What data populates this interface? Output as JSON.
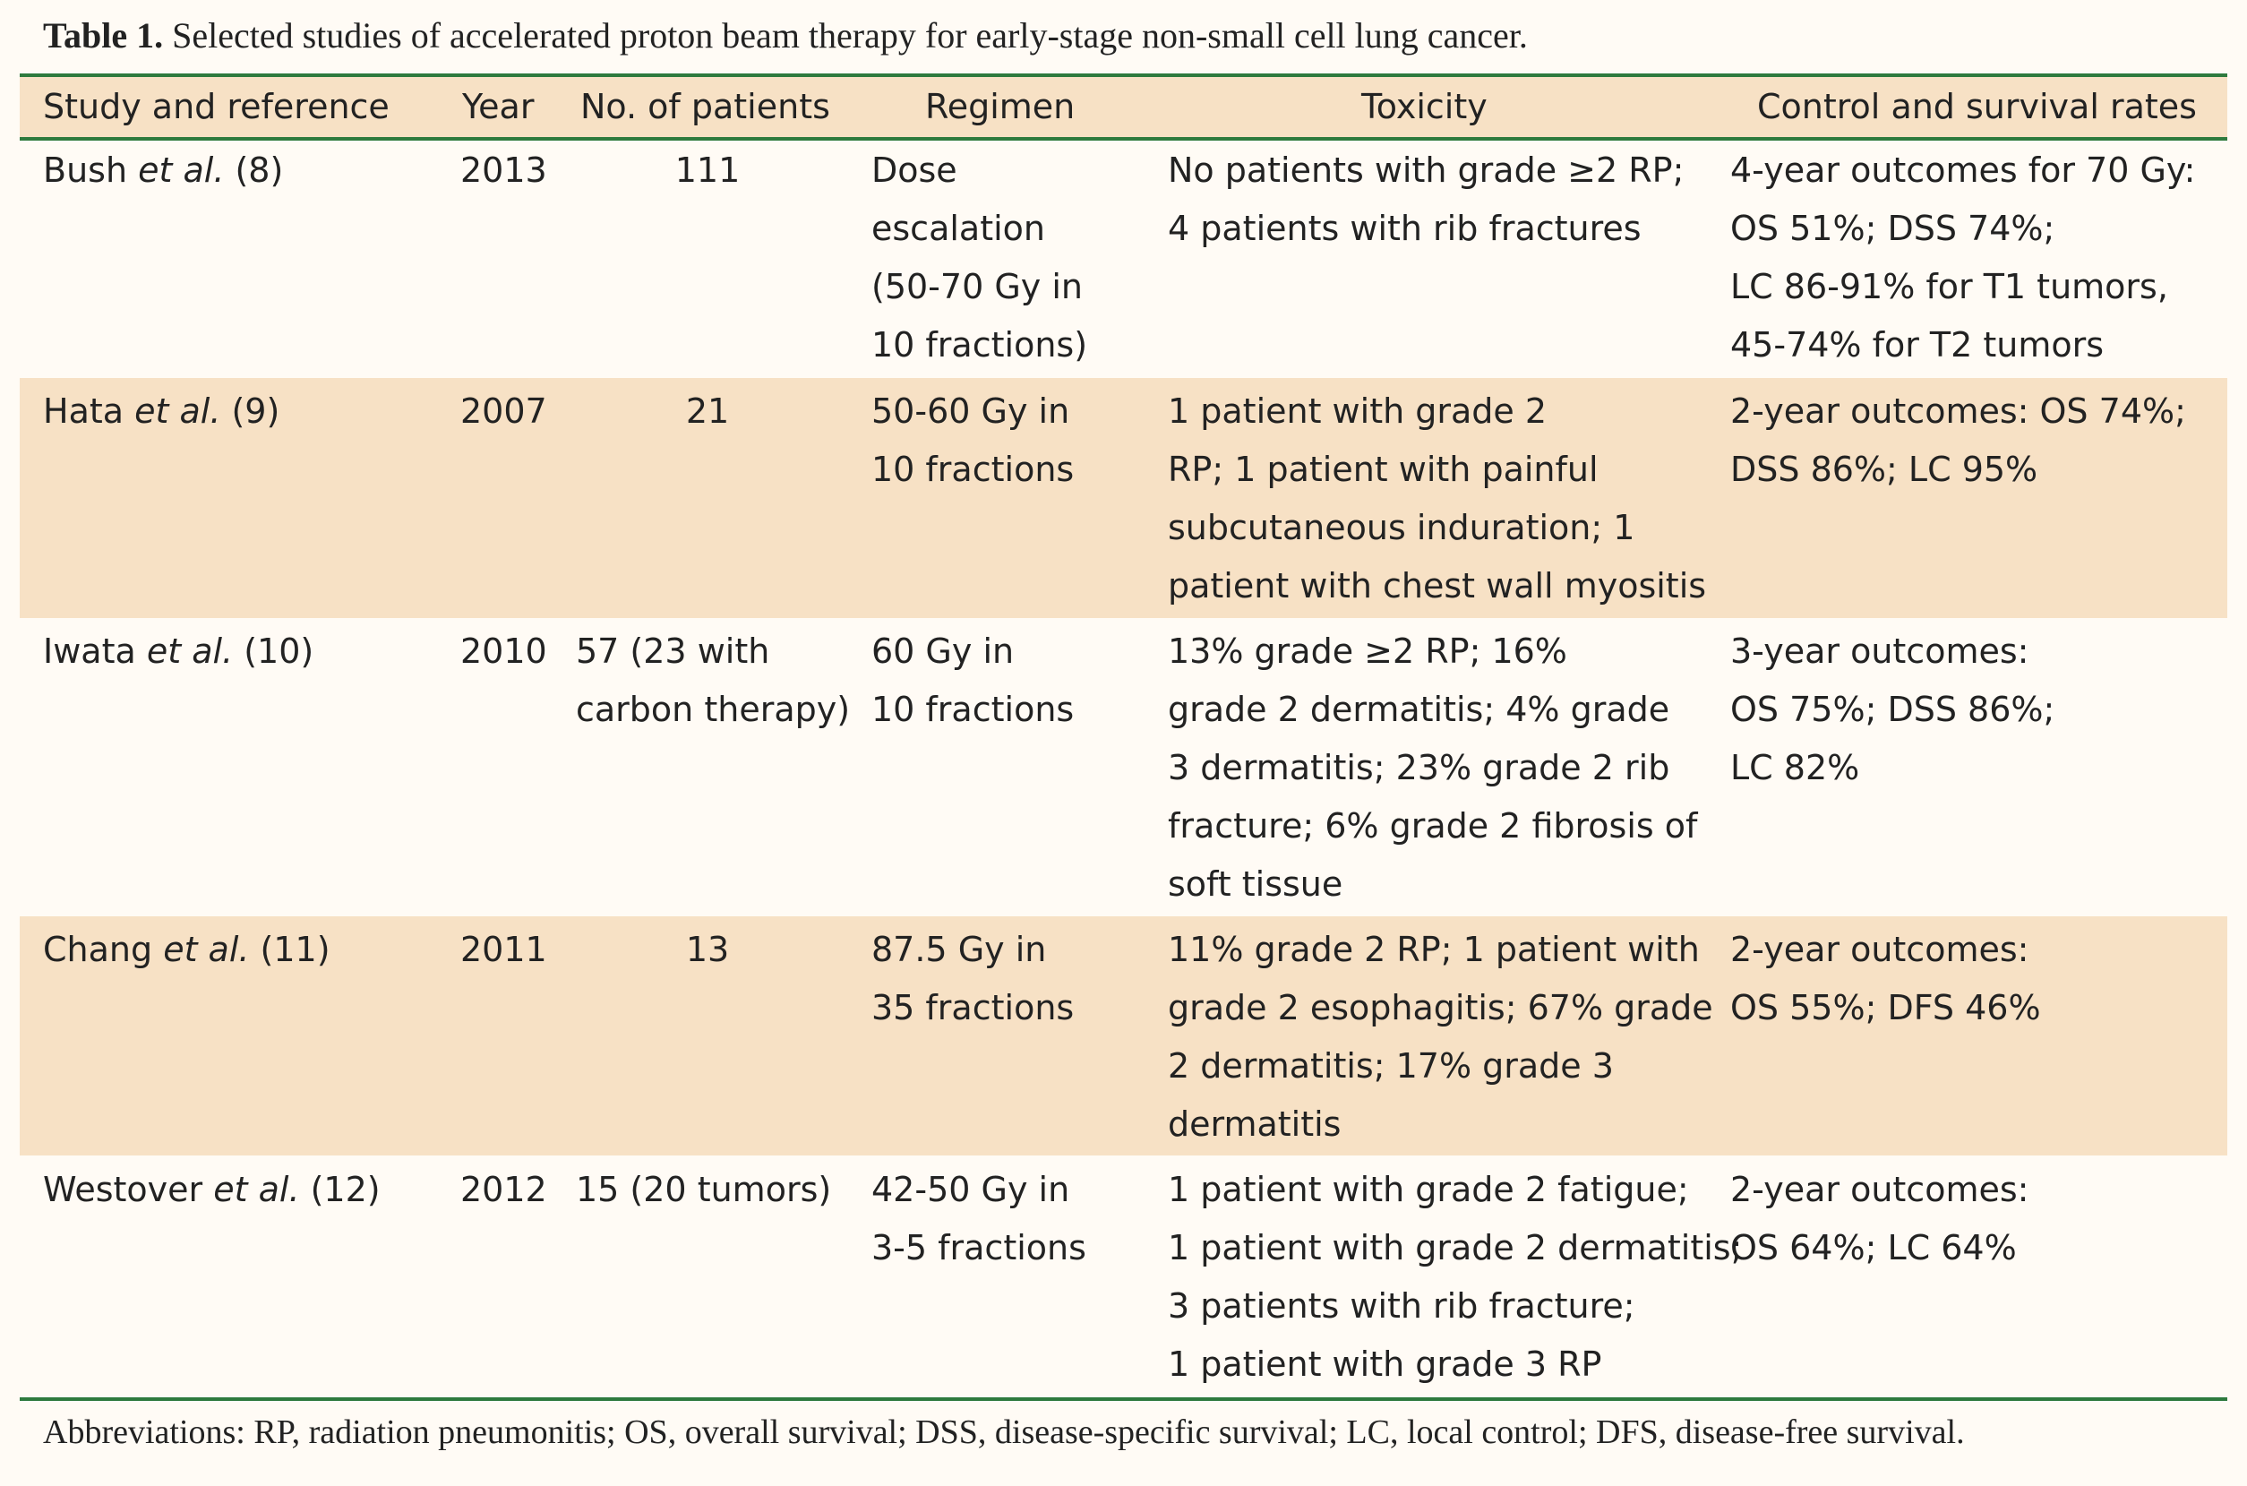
{
  "table": {
    "caption_label": "Table 1.",
    "caption_text": " Selected studies of accelerated proton beam therapy for early-stage non-small cell lung cancer.",
    "headers": [
      "Study and reference",
      "Year",
      "No. of patients",
      "Regimen",
      "Toxicity",
      "Control and survival rates"
    ],
    "rows": [
      {
        "author": "Bush ",
        "etal": "et al.",
        "ref": " (8)",
        "year": "2013",
        "patients": "111",
        "regimen": "Dose\nescalation\n(50-70 Gy in\n10 fractions)",
        "toxicity": "No patients with grade ≥2 RP;\n4 patients with rib fractures",
        "outcomes": "4-year outcomes for 70 Gy:\nOS 51%; DSS 74%;\nLC 86-91% for T1 tumors,\n45-74% for T2 tumors"
      },
      {
        "author": "Hata ",
        "etal": "et al.",
        "ref": " (9)",
        "year": "2007",
        "patients": "21",
        "regimen": "50-60 Gy in\n10 fractions",
        "toxicity": "1 patient with grade 2\nRP; 1 patient with painful\nsubcutaneous induration; 1\npatient with chest wall myositis",
        "outcomes": "2-year outcomes: OS 74%;\nDSS 86%; LC 95%"
      },
      {
        "author": "Iwata ",
        "etal": "et al.",
        "ref": " (10)",
        "year": "2010",
        "patients": "57 (23 with\ncarbon therapy)",
        "regimen": "60 Gy in\n10 fractions",
        "toxicity": "13% grade ≥2 RP; 16%\ngrade 2 dermatitis; 4% grade\n3 dermatitis; 23% grade 2 rib\nfracture; 6% grade 2 fibrosis of\nsoft tissue",
        "outcomes": "3-year outcomes:\nOS 75%; DSS 86%;\nLC 82%"
      },
      {
        "author": "Chang ",
        "etal": "et al.",
        "ref": " (11)",
        "year": "2011",
        "patients": "13",
        "regimen": "87.5 Gy in\n35 fractions",
        "toxicity": "11% grade 2 RP; 1 patient with\ngrade 2 esophagitis; 67% grade\n2 dermatitis; 17% grade 3\ndermatitis",
        "outcomes": "2-year outcomes:\nOS 55%; DFS 46%"
      },
      {
        "author": "Westover ",
        "etal": "et al.",
        "ref": " (12)",
        "year": "2012",
        "patients": "15 (20 tumors)",
        "regimen": "42-50 Gy in\n3-5 fractions",
        "toxicity": "1 patient with grade 2 fatigue;\n1 patient with grade 2 dermatitis;\n3 patients with rib fracture;\n1 patient with grade 3 RP",
        "outcomes": "2-year outcomes:\nOS 64%; LC 64%"
      }
    ],
    "footnote": "Abbreviations: RP, radiation pneumonitis; OS, overall survival; DSS, disease-specific survival; LC, local control; DFS, disease-free survival."
  },
  "colors": {
    "rule": "#2e7a3e",
    "shaded_row": "#f7e1c5",
    "background": "#fffbf5"
  }
}
